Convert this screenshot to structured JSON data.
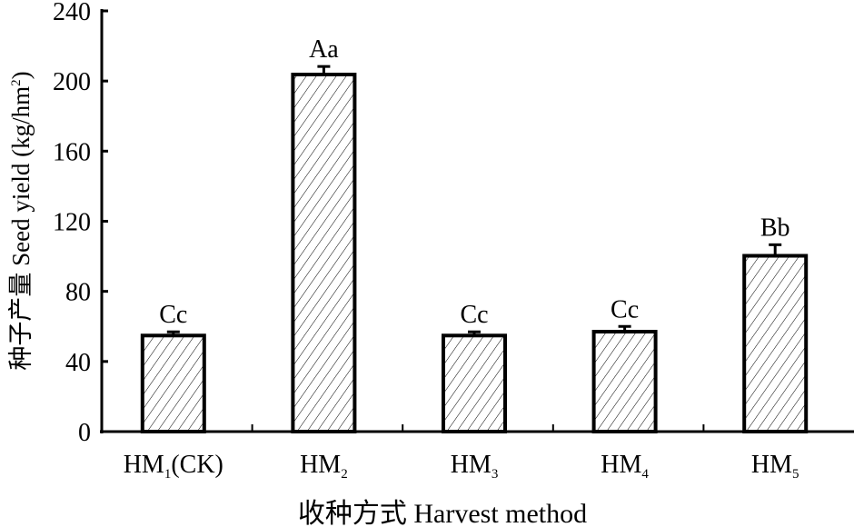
{
  "chart_data": {
    "type": "bar",
    "title": "",
    "xlabel": "收种方式 Harvest method",
    "ylabel": "种子产量 Seed yield (kg/hm²)",
    "ylabel_main": "种子产量 Seed yield (kg/hm",
    "ylabel_sup": "2",
    "ylabel_end": ")",
    "ylim": [
      0,
      240
    ],
    "yticks": [
      0,
      40,
      80,
      120,
      160,
      200,
      240
    ],
    "categories": [
      {
        "base": "HM",
        "sub": "1",
        "suffix": "(CK)"
      },
      {
        "base": "HM",
        "sub": "2",
        "suffix": ""
      },
      {
        "base": "HM",
        "sub": "3",
        "suffix": ""
      },
      {
        "base": "HM",
        "sub": "4",
        "suffix": ""
      },
      {
        "base": "HM",
        "sub": "5",
        "suffix": ""
      }
    ],
    "values": [
      54.8,
      203.7,
      54.8,
      57.0,
      100.3
    ],
    "errors": [
      2.1,
      4.6,
      2.1,
      3.0,
      6.3
    ],
    "significance": [
      "Cc",
      "Aa",
      "Cc",
      "Cc",
      "Bb"
    ],
    "bar_pattern": "diagonal-hatch",
    "grid": false,
    "colors": {
      "bar_fill": "#ffffff",
      "stroke": "#000000"
    }
  }
}
